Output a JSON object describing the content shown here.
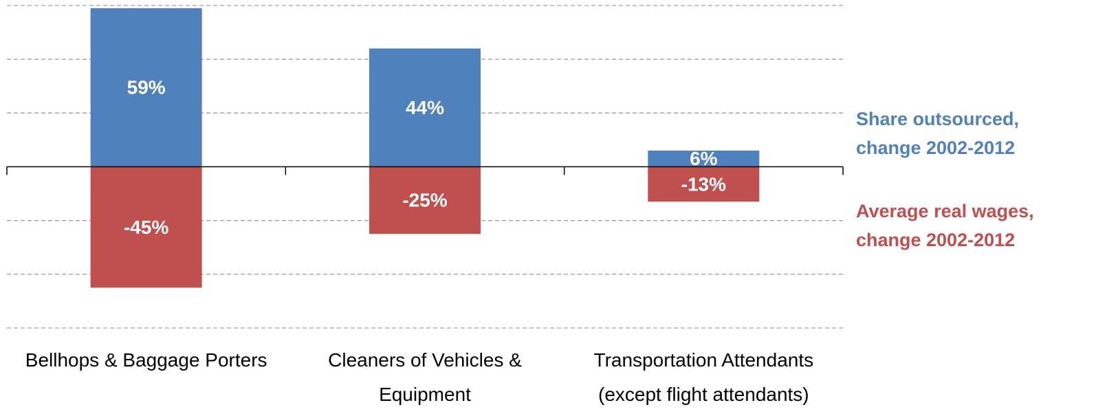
{
  "chart_data": {
    "type": "bar",
    "categories": [
      "Bellhops & Baggage Porters",
      "Cleaners of Vehicles & Equipment",
      "Transportation Attendants (except flight attendants)"
    ],
    "series": [
      {
        "name": "Share outsourced, change 2002-2012",
        "color": "#4f81bd",
        "values": [
          59,
          44,
          6
        ],
        "value_labels": [
          "59%",
          "44%",
          "6%"
        ]
      },
      {
        "name": "Average real wages, change 2002-2012",
        "color": "#c0504d",
        "values": [
          -45,
          -25,
          -13
        ],
        "value_labels": [
          "-45%",
          "-25%",
          "-13%"
        ]
      }
    ],
    "ylim": [
      -60,
      60
    ],
    "yticks": [
      -60,
      -40,
      -20,
      20,
      40,
      60
    ],
    "grid": true
  }
}
